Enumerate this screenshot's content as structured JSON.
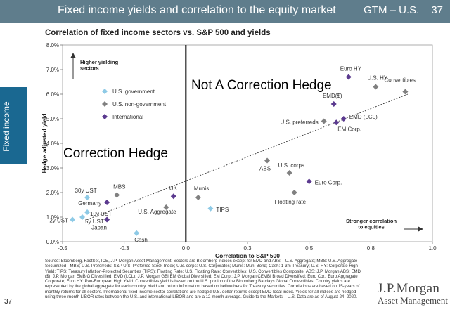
{
  "header": {
    "title": "Fixed income yields and correlation to the equity market",
    "code": "GTM – U.S.",
    "page": "37"
  },
  "side_tab": {
    "label": "Fixed income"
  },
  "page_number": "37",
  "chart_title": "Correlation of fixed income sectors vs. S&P 500 and yields",
  "overlay_texts": {
    "not_hedge": "Not A Correction Hedge",
    "hedge": "Correction Hedge"
  },
  "annotations": {
    "higher_yielding": "Higher yielding\nsectors",
    "stronger_correlation": "Stronger correlation\nto equities"
  },
  "colors": {
    "government": "#8ecae6",
    "non_government": "#808080",
    "international": "#5b3a8f",
    "header": "#5f7d8c",
    "side_tab": "#1a6891"
  },
  "chart_data": {
    "type": "scatter",
    "title": "Correlation of fixed income sectors vs. S&P 500 and yields",
    "xlabel": "Correlation to S&P 500",
    "ylabel": "Hedge adjusted yield",
    "xlim": [
      -0.5,
      1.0
    ],
    "ylim": [
      0.0,
      8.0
    ],
    "x_ticks": [
      "-0.5",
      "-0.3",
      "-0.1",
      "0.1",
      "0.3",
      "0.5",
      "0.7",
      "0.9",
      "1.0"
    ],
    "x_tick_values": [
      -0.5,
      -0.3,
      -0.1,
      0.1,
      0.3,
      0.5,
      0.7,
      0.9,
      1.0
    ],
    "x_tick_labels": [
      "-0.5",
      "-0.3",
      "0.0",
      "0.3",
      "0.5",
      "0.8",
      "1.0"
    ],
    "x_tick_label_values": [
      -0.5,
      -0.25,
      0.0,
      0.25,
      0.5,
      0.75,
      1.0
    ],
    "y_tick_labels": [
      "0.0%",
      "1.0%",
      "2.0%",
      "3.0%",
      "4.0%",
      "5.0%",
      "6.0%",
      "7.0%",
      "8.0%"
    ],
    "y_tick_values": [
      0,
      1,
      2,
      3,
      4,
      5,
      6,
      7,
      8
    ],
    "grid": false,
    "legend_position": "top-left",
    "legend": [
      {
        "name": "U.S. government",
        "shape": "diamond",
        "color": "#8ecae6"
      },
      {
        "name": "U.S. non-government",
        "shape": "diamond",
        "color": "#808080"
      },
      {
        "name": "International",
        "shape": "diamond",
        "color": "#5b3a8f"
      }
    ],
    "vertical_line_x": 0.0,
    "trendline": {
      "x0": -0.4,
      "y0": 0.9,
      "x1": 0.9,
      "y1": 6.0
    },
    "series": [
      {
        "name": "U.S. government",
        "points": [
          {
            "label": "30y UST",
            "x": -0.4,
            "y": 1.8
          },
          {
            "label": "10y UST",
            "x": -0.4,
            "y": 1.2
          },
          {
            "label": "5y UST",
            "x": -0.42,
            "y": 1.0
          },
          {
            "label": "2y UST",
            "x": -0.46,
            "y": 0.9
          },
          {
            "label": "Cash",
            "x": -0.2,
            "y": 0.35
          },
          {
            "label": "TIPS",
            "x": 0.1,
            "y": 1.35
          }
        ]
      },
      {
        "name": "U.S. non-government",
        "points": [
          {
            "label": "MBS",
            "x": -0.28,
            "y": 1.9
          },
          {
            "label": "U.S. Aggregate",
            "x": -0.08,
            "y": 1.4
          },
          {
            "label": "Munis",
            "x": 0.05,
            "y": 1.8
          },
          {
            "label": "ABS",
            "x": 0.33,
            "y": 3.3
          },
          {
            "label": "U.S. corps",
            "x": 0.42,
            "y": 2.8
          },
          {
            "label": "Floating rate",
            "x": 0.44,
            "y": 2.0
          },
          {
            "label": "U.S. preferreds",
            "x": 0.56,
            "y": 4.9
          },
          {
            "label": "U.S. HY",
            "x": 0.77,
            "y": 6.3
          },
          {
            "label": "Convertibles",
            "x": 0.89,
            "y": 6.1
          }
        ]
      },
      {
        "name": "International",
        "points": [
          {
            "label": "Germany",
            "x": -0.32,
            "y": 1.6
          },
          {
            "label": "Japan",
            "x": -0.32,
            "y": 0.9
          },
          {
            "label": "UK",
            "x": -0.05,
            "y": 1.85
          },
          {
            "label": "Euro Corp.",
            "x": 0.5,
            "y": 2.45
          },
          {
            "label": "EM Corp.",
            "x": 0.61,
            "y": 4.85
          },
          {
            "label": "EMD (LCL)",
            "x": 0.64,
            "y": 5.0
          },
          {
            "label": "EMD($)",
            "x": 0.6,
            "y": 5.6
          },
          {
            "label": "Euro HY",
            "x": 0.66,
            "y": 6.7
          }
        ]
      }
    ]
  },
  "footnote": "Source: Bloomberg, FactSet, ICE, J.P. Morgan Asset Management. Sectors are Bloomberg indices except for EMD and ABS – U.S. Aggregate; MBS: U.S. Aggregate Securitized - MBS; U.S. Preferreds: S&P U.S. Preferred Stock Index; U.S. corps: U.S. Corporates; Munis: Muni Bond; Cash: 1-3m Treasury; U.S. HY: Corporate High Yield; TIPS: Treasury Inflation-Protected Securities (TIPS); Floating Rate: U.S. Floating Rate; Convertibles: U.S. Convertibles Composite; ABS: J.P. Morgan ABS; EMD ($): J.P. Morgan EMBIG Diversified; EMD (LCL): J.P. Morgan GBI EM Global Diversified; EM Corp.: J.P. Morgan CEMBI Broad Diversified; Euro Cor.: Euro Aggregate Corporate; Euro HY: Pan-European High Yield. Convertibles yield is based on the U.S. portion of the Bloomberg Barclays Global Convertibles. Country yields are represented by the global aggregate for each country. Yield and return information based on bellwethers for Treasury securities. Correlations are based on 15-years of monthly returns for all sectors. International fixed income sector correlations are hedged U.S. dollar returns except EMD local index. Yields for all indices are hedged using three-month LIBOR rates between the U.S. and international LIBOR and are a 12-month average. Guide to the Markets – U.S. Data are as of August 24, 2020.",
  "brand": {
    "main": "J.P.Morgan",
    "sub": "Asset Management"
  }
}
